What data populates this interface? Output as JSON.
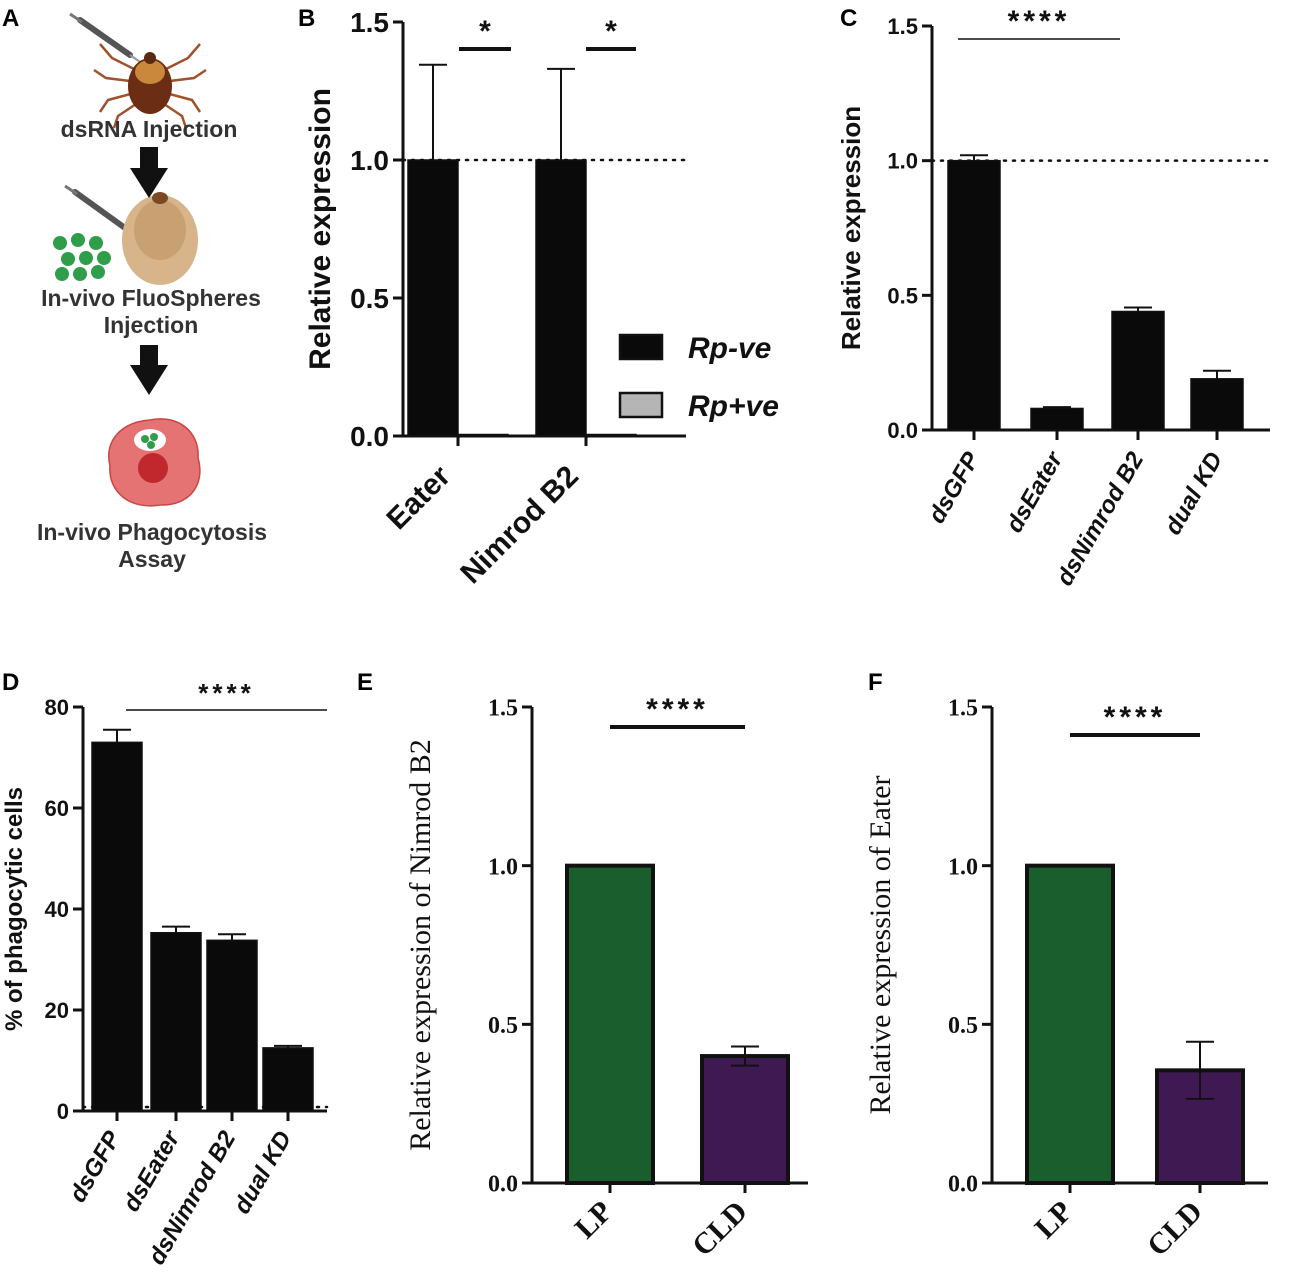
{
  "panels": {
    "A": {
      "label": "A",
      "steps": [
        "dsRNA Injection",
        "In-vivo FluoSpheres",
        "Injection",
        "In-vivo Phagocytosis",
        "Assay"
      ],
      "icons": [
        "tick-with-syringe-icon",
        "engorged-tick-with-syringe-icon",
        "fluosphere-beads-icon",
        "hemocyte-cell-icon",
        "down-arrow-icon"
      ]
    },
    "B": {
      "label": "B"
    },
    "C": {
      "label": "C"
    },
    "D": {
      "label": "D"
    },
    "E": {
      "label": "E"
    },
    "F": {
      "label": "F"
    }
  },
  "colors": {
    "black": "#0a0a0a",
    "grey_bar": "#b5b5b5",
    "green": "#1b5e2e",
    "purple": "#3f1a52"
  },
  "chart_data": [
    {
      "panel": "B",
      "type": "bar",
      "categories": [
        "Eater",
        "Nimrod B2"
      ],
      "series": [
        {
          "name": "Rp-ve",
          "values": [
            1.0,
            1.0
          ],
          "errors": [
            0.345,
            0.33
          ]
        },
        {
          "name": "Rp+ve",
          "values": [
            0.0,
            0.005
          ],
          "errors": [
            0.0,
            0.0
          ]
        }
      ],
      "ylabel": "Relative expression",
      "ylim": [
        0,
        1.5
      ],
      "yticks": [
        "0.0",
        "0.5",
        "1.0",
        "1.5"
      ],
      "reference_line": 1.0,
      "significance": [
        "*",
        "*"
      ],
      "legend": [
        "Rp-ve",
        "Rp+ve"
      ]
    },
    {
      "panel": "C",
      "type": "bar",
      "categories": [
        "dsGFP",
        "dsEater",
        "dsNimrod B2",
        "dual KD"
      ],
      "values": [
        1.0,
        0.08,
        0.44,
        0.19
      ],
      "errors": [
        0.02,
        0.005,
        0.015,
        0.03
      ],
      "ylabel": "Relative expression",
      "ylim": [
        0,
        1.5
      ],
      "yticks": [
        "0.0",
        "0.5",
        "1.0",
        "1.5"
      ],
      "reference_line": 1.0,
      "significance": "****"
    },
    {
      "panel": "D",
      "type": "bar",
      "categories": [
        "dsGFP",
        "dsEater",
        "dsNimrod B2",
        "dual KD"
      ],
      "values": [
        73,
        35.3,
        33.8,
        12.5
      ],
      "errors": [
        2.5,
        1.2,
        1.2,
        0.4
      ],
      "ylabel": "% of phagocytic cells",
      "ylim": [
        0,
        80
      ],
      "yticks": [
        "0",
        "20",
        "40",
        "60",
        "80"
      ],
      "reference_line": 0.8,
      "significance": "****"
    },
    {
      "panel": "E",
      "type": "bar",
      "categories": [
        "LP",
        "CLD"
      ],
      "values": [
        1.0,
        0.4
      ],
      "errors": [
        0.0,
        0.03
      ],
      "ylabel": "Relative expression of Nimrod B2",
      "ylim": [
        0,
        1.5
      ],
      "yticks": [
        "0.0",
        "0.5",
        "1.0",
        "1.5"
      ],
      "significance": "****"
    },
    {
      "panel": "F",
      "type": "bar",
      "categories": [
        "LP",
        "CLD"
      ],
      "values": [
        1.0,
        0.355
      ],
      "errors": [
        0.0,
        0.09
      ],
      "ylabel": "Relative expression of Eater",
      "ylim": [
        0,
        1.5
      ],
      "yticks": [
        "0.0",
        "0.5",
        "1.0",
        "1.5"
      ],
      "significance": "****"
    }
  ]
}
